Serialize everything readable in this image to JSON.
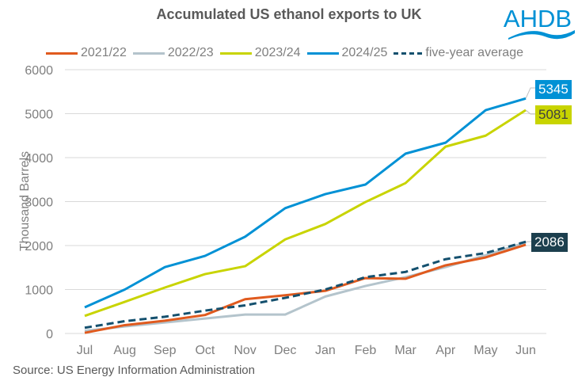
{
  "header": {
    "title": "Accumulated US ethanol exports to UK",
    "logo_text": "AHDB"
  },
  "footer": {
    "source": "Source: US Energy Information Administration"
  },
  "colors": {
    "2021/22": "#e05a1e",
    "2022/23": "#b4c4cc",
    "2023/24": "#c8d400",
    "2024/25": "#0091d5",
    "five-year average": "#14506e",
    "logo": "#0091d5"
  },
  "legend": [
    {
      "label": "2021/22",
      "color": "#e05a1e",
      "style": "solid"
    },
    {
      "label": "2022/23",
      "color": "#b4c4cc",
      "style": "solid"
    },
    {
      "label": "2023/24",
      "color": "#c8d400",
      "style": "solid"
    },
    {
      "label": "2024/25",
      "color": "#0091d5",
      "style": "solid"
    },
    {
      "label": "five-year average",
      "color": "#14506e",
      "style": "dashed"
    }
  ],
  "data_labels": [
    {
      "series": "2024/25",
      "value": "5345",
      "bg": "#0091d5",
      "fg": "#ffffff"
    },
    {
      "series": "2023/24",
      "value": "5081",
      "bg": "#c8d400",
      "fg": "#404040"
    },
    {
      "series": "five-year average",
      "value": "2086",
      "bg": "#1c3f4e",
      "fg": "#ffffff"
    }
  ],
  "chart_data": {
    "type": "line",
    "title": "Accumulated US ethanol exports to UK",
    "xlabel": "",
    "ylabel": "Thousand Barrels",
    "categories": [
      "Jul",
      "Aug",
      "Sep",
      "Oct",
      "Nov",
      "Dec",
      "Jan",
      "Feb",
      "Mar",
      "Apr",
      "May",
      "Jun"
    ],
    "ylim": [
      0,
      6000
    ],
    "yticks": [
      0,
      1000,
      2000,
      3000,
      4000,
      5000,
      6000
    ],
    "grid": true,
    "legend_position": "top",
    "series": [
      {
        "name": "2021/22",
        "values": [
          15,
          190,
          290,
          420,
          780,
          870,
          970,
          1260,
          1245,
          1550,
          1730,
          2020
        ]
      },
      {
        "name": "2022/23",
        "values": [
          60,
          160,
          250,
          340,
          430,
          430,
          840,
          1080,
          1280,
          1510,
          1780,
          2070
        ]
      },
      {
        "name": "2023/24",
        "values": [
          400,
          720,
          1045,
          1350,
          1530,
          2140,
          2490,
          2990,
          3420,
          4250,
          4500,
          5081
        ]
      },
      {
        "name": "2024/25",
        "values": [
          595,
          1000,
          1510,
          1765,
          2200,
          2850,
          3170,
          3387,
          4090,
          4340,
          5080,
          5345
        ]
      },
      {
        "name": "five-year average",
        "values": [
          130,
          280,
          380,
          520,
          640,
          810,
          1000,
          1280,
          1400,
          1690,
          1830,
          2086
        ],
        "style": "dashed"
      }
    ],
    "annotations": [
      "5345",
      "5081",
      "2086"
    ],
    "source": "Source: US Energy Information Administration"
  }
}
